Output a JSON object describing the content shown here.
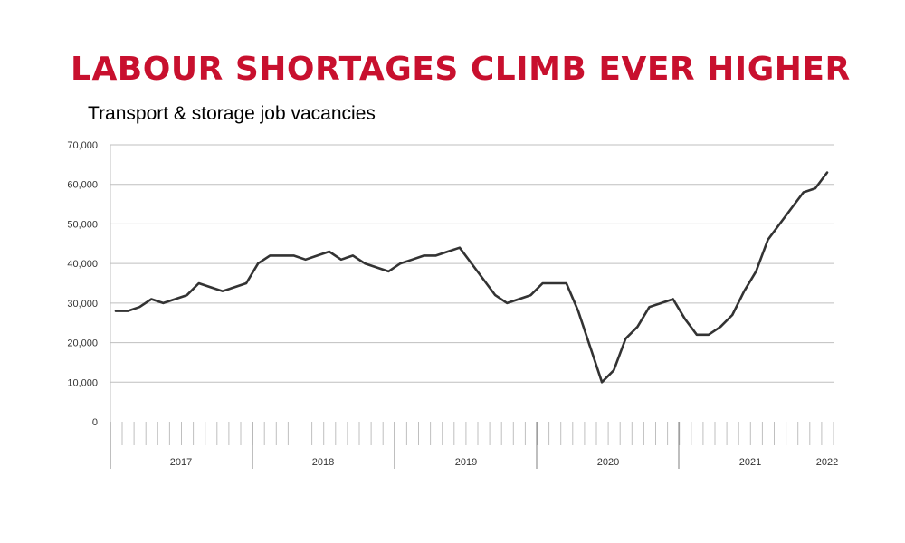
{
  "headline": "LABOUR SHORTAGES CLIMB EVER HIGHER",
  "subtitle": "Transport & storage job vacancies",
  "colors": {
    "headline": "#c8102e",
    "line": "#333333",
    "grid": "#bfbfbf"
  },
  "chart_data": {
    "type": "line",
    "ylim": [
      0,
      70000
    ],
    "y_ticks": [
      0,
      10000,
      20000,
      30000,
      40000,
      50000,
      60000,
      70000
    ],
    "y_tick_labels": [
      "0",
      "10,000",
      "20,000",
      "30,000",
      "40,000",
      "50,000",
      "60,000",
      "70,000"
    ],
    "years": [
      "2017",
      "2018",
      "2019",
      "2020",
      "2021",
      "2022"
    ],
    "grid": true,
    "series": [
      {
        "values": [
          28000,
          28000,
          29000,
          31000,
          30000,
          31000,
          32000,
          35000,
          34000,
          33000,
          34000,
          35000,
          40000,
          42000,
          42000,
          42000,
          41000,
          42000,
          43000,
          41000,
          42000,
          40000,
          39000,
          38000,
          40000,
          41000,
          42000,
          42000,
          43000,
          44000,
          40000,
          36000,
          32000,
          30000,
          31000,
          32000,
          35000,
          35000,
          35000,
          28000,
          19000,
          10000,
          13000,
          21000,
          24000,
          29000,
          30000,
          31000,
          26000,
          22000,
          22000,
          24000,
          27000,
          33000,
          38000,
          46000,
          50000,
          54000,
          58000,
          59000,
          63000
        ]
      }
    ]
  }
}
